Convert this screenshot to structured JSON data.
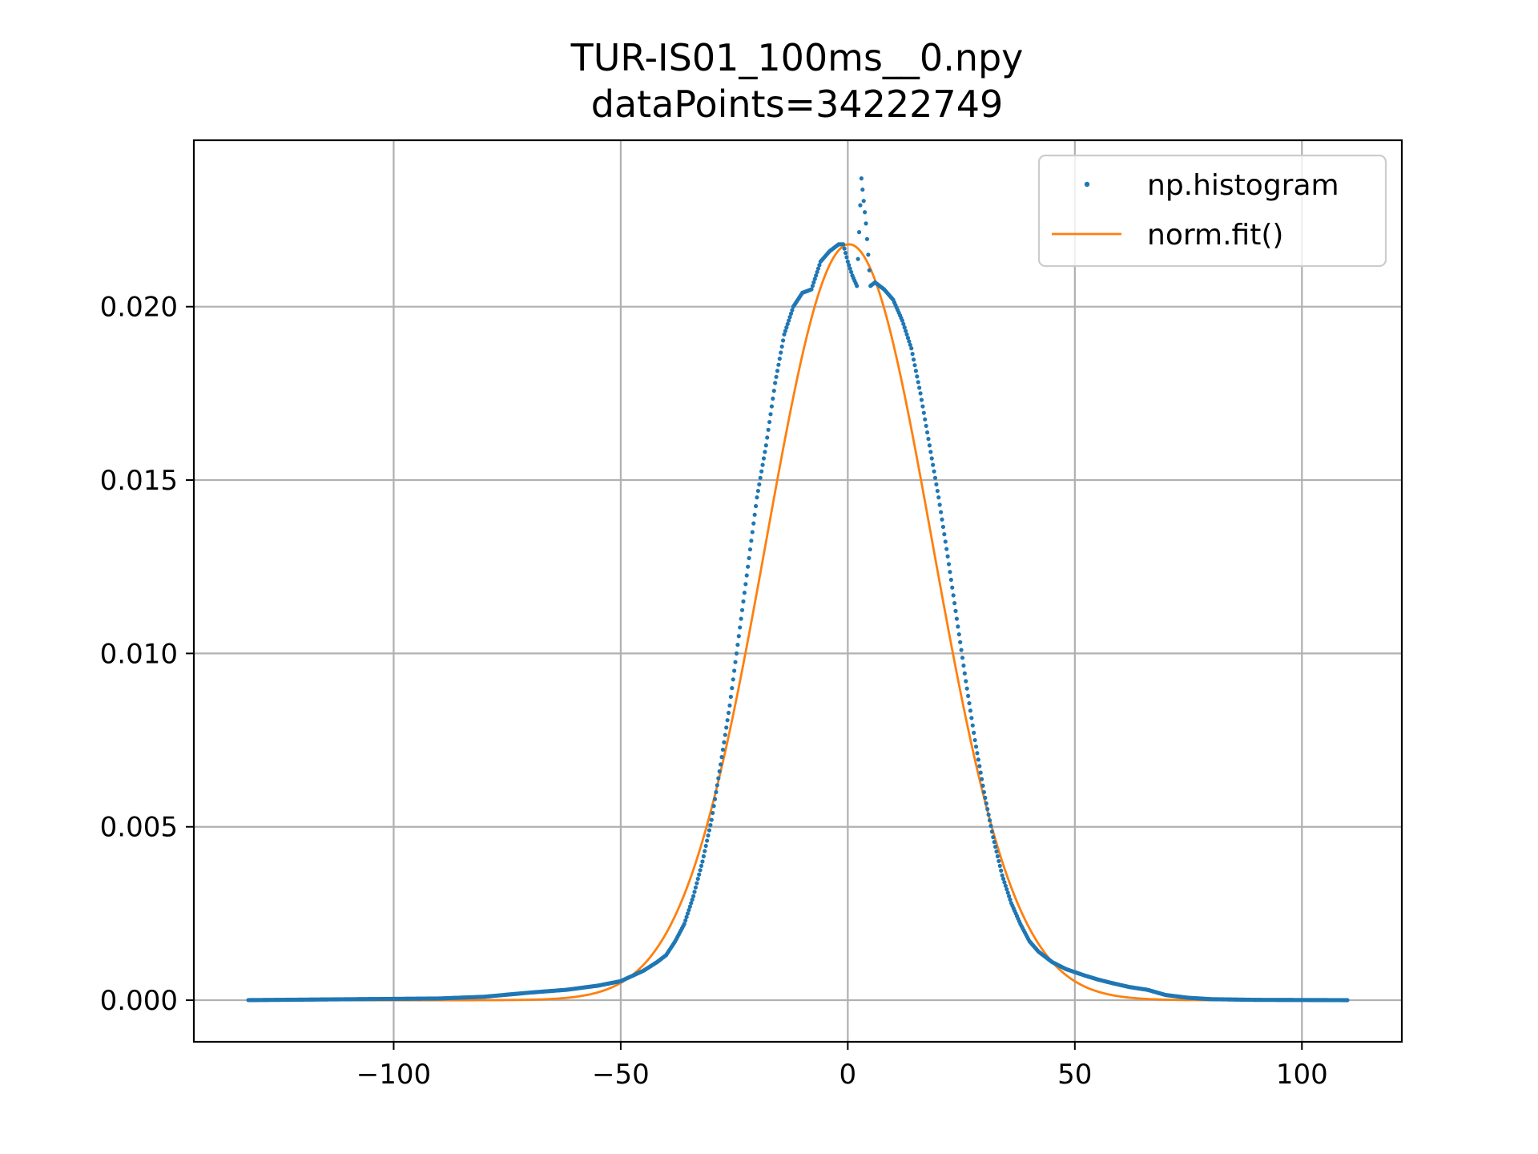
{
  "chart_data": {
    "type": "scatter",
    "title": "TUR-IS01_100ms__0.npy",
    "subtitle": "dataPoints=34222749",
    "xlim": [
      -144,
      122
    ],
    "ylim": [
      -0.0012,
      0.0248
    ],
    "xticks": [
      -100,
      -50,
      0,
      50,
      100
    ],
    "yticks": [
      0.0,
      0.005,
      0.01,
      0.015,
      0.02
    ],
    "grid": true,
    "legend_position": "top-right",
    "colors": {
      "histogram": "#1f77b4",
      "fit": "#ff7f0e",
      "grid": "#b0b0b0"
    },
    "histogram": {
      "name": "np.histogram",
      "x_range": [
        -132,
        110
      ],
      "points": [
        [
          -90,
          5e-05
        ],
        [
          -80,
          0.0001
        ],
        [
          -70,
          0.00022
        ],
        [
          -62,
          0.0003
        ],
        [
          -55,
          0.00042
        ],
        [
          -50,
          0.00055
        ],
        [
          -45,
          0.00085
        ],
        [
          -42,
          0.0011
        ],
        [
          -40,
          0.0013
        ],
        [
          -38,
          0.0017
        ],
        [
          -36,
          0.0022
        ],
        [
          -34,
          0.003
        ],
        [
          -32,
          0.004
        ],
        [
          -30,
          0.0052
        ],
        [
          -28,
          0.0068
        ],
        [
          -26,
          0.0085
        ],
        [
          -24,
          0.0105
        ],
        [
          -22,
          0.0125
        ],
        [
          -20,
          0.0145
        ],
        [
          -18,
          0.016
        ],
        [
          -16,
          0.0178
        ],
        [
          -14,
          0.0192
        ],
        [
          -12,
          0.02
        ],
        [
          -10,
          0.0204
        ],
        [
          -8,
          0.0205
        ],
        [
          -6,
          0.0213
        ],
        [
          -4,
          0.0216
        ],
        [
          -2,
          0.0218
        ],
        [
          -1,
          0.0218
        ],
        [
          0,
          0.0213
        ],
        [
          1,
          0.0209
        ],
        [
          2,
          0.0206
        ],
        [
          3,
          0.0237
        ],
        [
          4,
          0.0224
        ],
        [
          5,
          0.0206
        ],
        [
          6,
          0.0207
        ],
        [
          8,
          0.0205
        ],
        [
          10,
          0.0202
        ],
        [
          12,
          0.0196
        ],
        [
          14,
          0.0188
        ],
        [
          16,
          0.0175
        ],
        [
          18,
          0.016
        ],
        [
          20,
          0.0145
        ],
        [
          22,
          0.0128
        ],
        [
          24,
          0.011
        ],
        [
          26,
          0.0092
        ],
        [
          28,
          0.0075
        ],
        [
          30,
          0.006
        ],
        [
          32,
          0.0047
        ],
        [
          34,
          0.0036
        ],
        [
          36,
          0.0028
        ],
        [
          38,
          0.0022
        ],
        [
          40,
          0.0017
        ],
        [
          42,
          0.0014
        ],
        [
          45,
          0.0011
        ],
        [
          48,
          0.0009
        ],
        [
          52,
          0.00072
        ],
        [
          55,
          0.0006
        ],
        [
          58,
          0.0005
        ],
        [
          62,
          0.00038
        ],
        [
          66,
          0.0003
        ],
        [
          70,
          0.00015
        ],
        [
          75,
          7e-05
        ],
        [
          80,
          3e-05
        ],
        [
          90,
          1e-05
        ]
      ]
    },
    "fit": {
      "name": "norm.fit()",
      "mean": 0.3,
      "sigma": 18.3,
      "peak": 0.0218
    }
  }
}
